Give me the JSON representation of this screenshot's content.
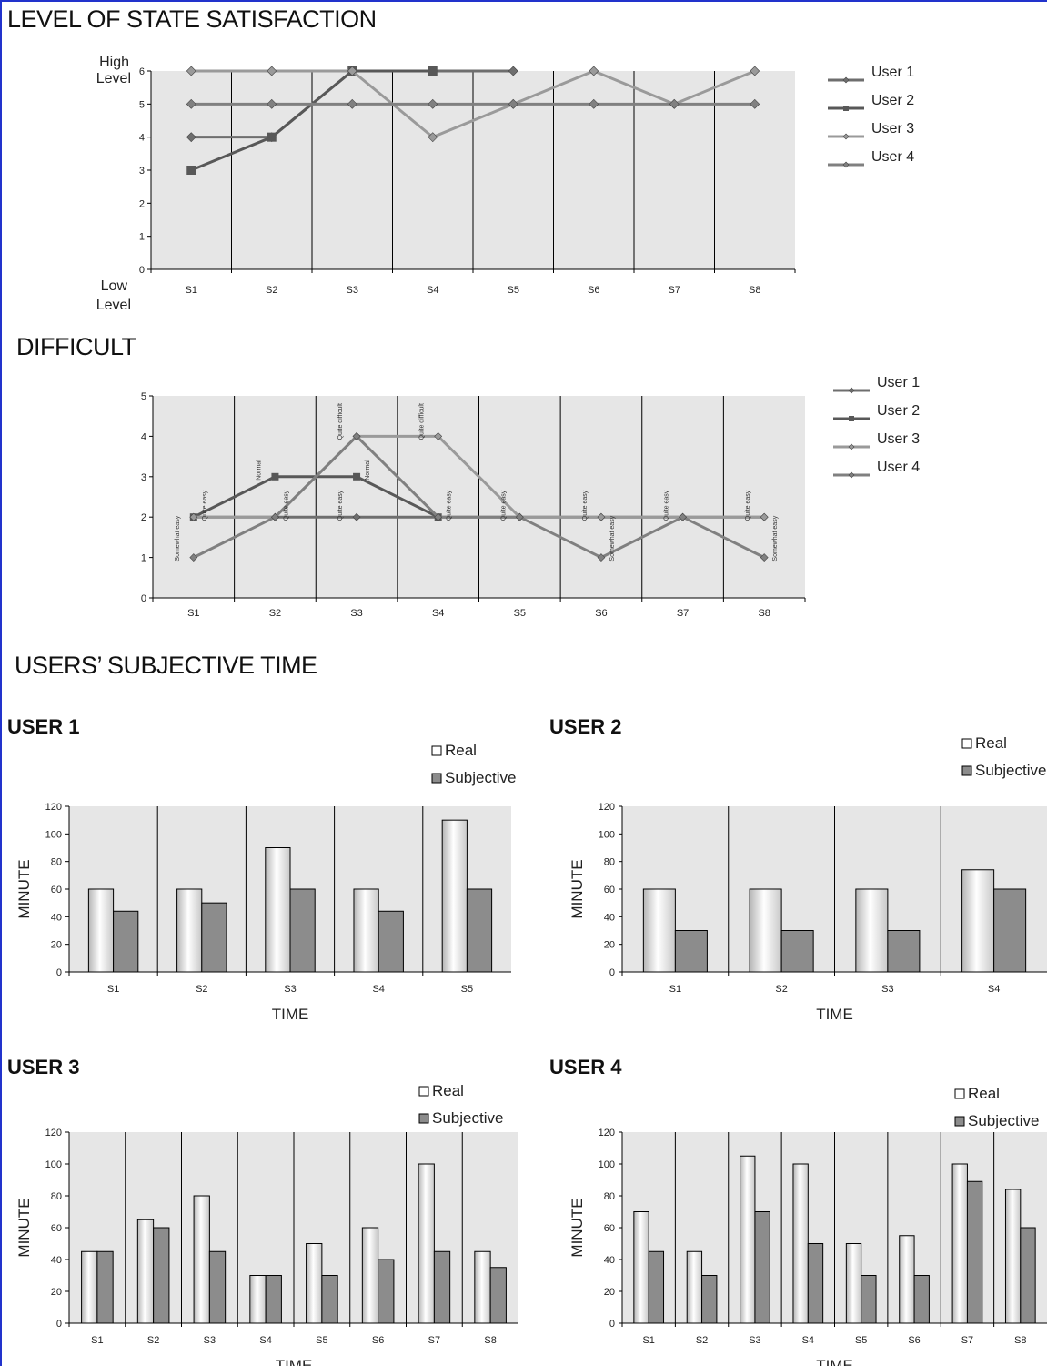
{
  "titles": {
    "satisfaction": "LEVEL OF STATE SATISFACTION",
    "difficult": "DIFFICULT",
    "subjective": "USERS’ SUBJECTIVE TIME"
  },
  "colors": {
    "plot_bg": "#e6e6e6",
    "user1": "#6e6e6e",
    "user2": "#585858",
    "user3": "#9a9a9a",
    "user4": "#808080",
    "bar_subjective": "#8c8c8c"
  },
  "chart_data": [
    {
      "id": "satisfaction",
      "type": "line",
      "title": "LEVEL OF STATE SATISFACTION",
      "categories": [
        "S1",
        "S2",
        "S3",
        "S4",
        "S5",
        "S6",
        "S7",
        "S8"
      ],
      "ylim": [
        0,
        6
      ],
      "yticks": [
        0,
        1,
        2,
        3,
        4,
        5,
        6
      ],
      "ylabel_top": [
        "High",
        "Level"
      ],
      "ylabel_bottom": [
        "Low",
        "Level"
      ],
      "grid": "vertical",
      "legend_position": "right",
      "series": [
        {
          "name": "User 1",
          "marker": "diamond",
          "values": [
            4,
            4,
            6,
            6,
            6,
            null,
            null,
            null
          ]
        },
        {
          "name": "User 2",
          "marker": "square",
          "values": [
            3,
            4,
            6,
            6,
            null,
            null,
            null,
            null
          ]
        },
        {
          "name": "User 3",
          "marker": "diamond",
          "values": [
            6,
            6,
            6,
            4,
            5,
            6,
            5,
            6
          ]
        },
        {
          "name": "User 4",
          "marker": "diamond",
          "values": [
            5,
            5,
            5,
            5,
            5,
            5,
            5,
            5
          ]
        }
      ]
    },
    {
      "id": "difficult",
      "type": "line",
      "title": "DIFFICULT",
      "categories": [
        "S1",
        "S2",
        "S3",
        "S4",
        "S5",
        "S6",
        "S7",
        "S8"
      ],
      "ylim": [
        0,
        5
      ],
      "yticks": [
        0,
        1,
        2,
        3,
        4,
        5
      ],
      "grid": "vertical",
      "legend_position": "right",
      "series": [
        {
          "name": "User 1",
          "marker": "diamond",
          "values": [
            2,
            2,
            2,
            2,
            2,
            2,
            2,
            2
          ]
        },
        {
          "name": "User 2",
          "marker": "square",
          "values": [
            2,
            3,
            3,
            2,
            null,
            null,
            null,
            null
          ]
        },
        {
          "name": "User 3",
          "marker": "diamond",
          "values": [
            2,
            2,
            4,
            4,
            2,
            2,
            2,
            2
          ]
        },
        {
          "name": "User 4",
          "marker": "diamond",
          "values": [
            1,
            2,
            4,
            2,
            2,
            1,
            2,
            1
          ]
        }
      ],
      "annotations": [
        {
          "text": "Somewhat easy",
          "cat": 0,
          "y": 1
        },
        {
          "text": "Quite easy",
          "cat": 0,
          "y": 2
        },
        {
          "text": "Normal",
          "cat": 1,
          "y": 3
        },
        {
          "text": "Quite easy",
          "cat": 1,
          "y": 2
        },
        {
          "text": "Quite difficult",
          "cat": 2,
          "y": 4
        },
        {
          "text": "Normal",
          "cat": 2,
          "y": 3
        },
        {
          "text": "Quite easy",
          "cat": 2,
          "y": 2
        },
        {
          "text": "Quite difficult",
          "cat": 3,
          "y": 4
        },
        {
          "text": "Quite easy",
          "cat": 3,
          "y": 2
        },
        {
          "text": "Quite easy",
          "cat": 4,
          "y": 2
        },
        {
          "text": "Quite easy",
          "cat": 5,
          "y": 2
        },
        {
          "text": "Somewhat easy",
          "cat": 5,
          "y": 1
        },
        {
          "text": "Quite easy",
          "cat": 6,
          "y": 2
        },
        {
          "text": "Quite easy",
          "cat": 7,
          "y": 2
        },
        {
          "text": "Somewhat easy",
          "cat": 7,
          "y": 1
        }
      ]
    },
    {
      "id": "user1",
      "type": "bar",
      "title": "USER 1",
      "categories": [
        "S1",
        "S2",
        "S3",
        "S4",
        "S5"
      ],
      "xlabel": "TIME",
      "ylabel": "MINUTE",
      "ylim": [
        0,
        120
      ],
      "yticks": [
        0,
        20,
        40,
        60,
        80,
        100,
        120
      ],
      "legend_position": "top-right",
      "series": [
        {
          "name": "Real",
          "values": [
            60,
            60,
            90,
            60,
            110
          ]
        },
        {
          "name": "Subjective",
          "values": [
            44,
            50,
            60,
            44,
            60
          ]
        }
      ]
    },
    {
      "id": "user2",
      "type": "bar",
      "title": "USER 2",
      "categories": [
        "S1",
        "S2",
        "S3",
        "S4"
      ],
      "xlabel": "TIME",
      "ylabel": "MINUTE",
      "ylim": [
        0,
        120
      ],
      "yticks": [
        0,
        20,
        40,
        60,
        80,
        100,
        120
      ],
      "legend_position": "top-right",
      "series": [
        {
          "name": "Real",
          "values": [
            60,
            60,
            60,
            74
          ]
        },
        {
          "name": "Subjective",
          "values": [
            30,
            30,
            30,
            60
          ]
        }
      ]
    },
    {
      "id": "user3",
      "type": "bar",
      "title": "USER 3",
      "categories": [
        "S1",
        "S2",
        "S3",
        "S4",
        "S5",
        "S6",
        "S7",
        "S8"
      ],
      "xlabel": "TIME",
      "ylabel": "MINUTE",
      "ylim": [
        0,
        120
      ],
      "yticks": [
        0,
        20,
        40,
        60,
        80,
        100,
        120
      ],
      "legend_position": "top-right",
      "series": [
        {
          "name": "Real",
          "values": [
            45,
            65,
            80,
            30,
            50,
            60,
            100,
            45
          ]
        },
        {
          "name": "Subjective",
          "values": [
            45,
            60,
            45,
            30,
            30,
            40,
            45,
            35
          ]
        }
      ]
    },
    {
      "id": "user4",
      "type": "bar",
      "title": "USER 4",
      "categories": [
        "S1",
        "S2",
        "S3",
        "S4",
        "S5",
        "S6",
        "S7",
        "S8"
      ],
      "xlabel": "TIME",
      "ylabel": "MINUTE",
      "ylim": [
        0,
        120
      ],
      "yticks": [
        0,
        20,
        40,
        60,
        80,
        100,
        120
      ],
      "legend_position": "top-right",
      "series": [
        {
          "name": "Real",
          "values": [
            70,
            45,
            105,
            100,
            50,
            55,
            100,
            84
          ]
        },
        {
          "name": "Subjective",
          "values": [
            45,
            30,
            70,
            50,
            30,
            30,
            89,
            60
          ]
        }
      ]
    }
  ]
}
